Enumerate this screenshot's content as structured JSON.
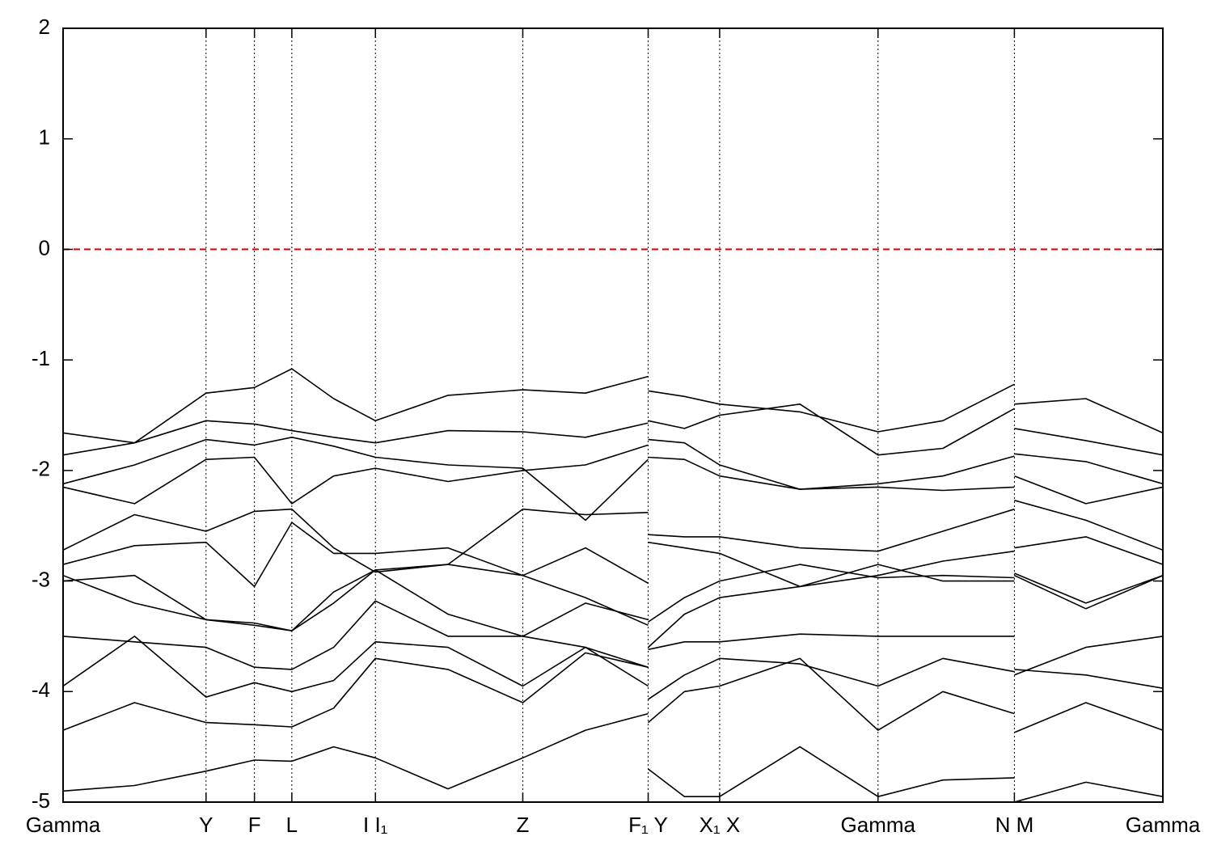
{
  "chart_data": {
    "type": "line",
    "x": [
      0,
      0.065,
      0.13,
      0.174,
      0.208,
      0.246,
      0.284,
      0.35,
      0.418,
      0.475,
      0.532,
      0.532,
      0.532,
      0.565,
      0.597,
      0.67,
      0.741,
      0.8,
      0.865,
      0.865,
      0.865,
      0.93,
      1.0
    ],
    "xlim": [
      0,
      1
    ],
    "xticks": [
      {
        "value": 0,
        "label": "Gamma"
      },
      {
        "value": 0.13,
        "label": "Y"
      },
      {
        "value": 0.174,
        "label": "F"
      },
      {
        "value": 0.208,
        "label": "L"
      },
      {
        "value": 0.284,
        "label": "I I₁"
      },
      {
        "value": 0.418,
        "label": "Z"
      },
      {
        "value": 0.532,
        "label": "F₁ Y"
      },
      {
        "value": 0.597,
        "label": "X₁ X"
      },
      {
        "value": 0.741,
        "label": "Gamma"
      },
      {
        "value": 0.865,
        "label": "N M"
      },
      {
        "value": 1.0,
        "label": "Gamma"
      }
    ],
    "ylim": [
      -5,
      2
    ],
    "yticks": [
      -5,
      -4,
      -3,
      -2,
      -1,
      0,
      1,
      2
    ],
    "xgrid": true,
    "hline": {
      "value": 0,
      "color": "#e00000"
    },
    "series": [
      {
        "color": "#000000",
        "values": [
          -1.66,
          -1.75,
          -1.3,
          -1.25,
          -1.08,
          -1.35,
          -1.55,
          -1.32,
          -1.27,
          -1.3,
          -1.15,
          null,
          -1.28,
          -1.33,
          -1.4,
          -1.47,
          -1.65,
          -1.55,
          -1.22,
          null,
          -1.4,
          -1.35,
          -1.66
        ]
      },
      {
        "color": "#000000",
        "values": [
          -1.86,
          -1.75,
          -1.55,
          -1.58,
          -1.64,
          -1.7,
          -1.75,
          -1.64,
          -1.65,
          -1.7,
          -1.57,
          null,
          -1.55,
          -1.62,
          -1.5,
          -1.4,
          -1.86,
          -1.8,
          -1.44,
          null,
          -1.62,
          -1.73,
          -1.86
        ]
      },
      {
        "color": "#000000",
        "values": [
          -2.12,
          -1.95,
          -1.72,
          -1.77,
          -1.7,
          -1.78,
          -1.88,
          -1.95,
          -1.98,
          -2.45,
          -1.9,
          null,
          -1.72,
          -1.75,
          -1.95,
          -2.17,
          -2.12,
          -2.05,
          -1.87,
          null,
          -1.85,
          -1.92,
          -2.12
        ]
      },
      {
        "color": "#000000",
        "values": [
          -2.15,
          -2.3,
          -1.9,
          -1.88,
          -2.3,
          -2.05,
          -1.98,
          -2.1,
          -2.0,
          -1.95,
          -1.77,
          null,
          -1.88,
          -1.9,
          -2.05,
          -2.17,
          -2.15,
          -2.18,
          -2.15,
          null,
          -2.05,
          -2.3,
          -2.15
        ]
      },
      {
        "color": "#000000",
        "values": [
          -2.72,
          -2.4,
          -2.55,
          -2.37,
          -2.35,
          -2.7,
          -2.92,
          -2.85,
          -2.35,
          -2.4,
          -2.38,
          null,
          -2.58,
          -2.6,
          -2.6,
          -2.7,
          -2.73,
          -2.55,
          -2.35,
          null,
          -2.27,
          -2.45,
          -2.72
        ]
      },
      {
        "color": "#000000",
        "values": [
          -2.85,
          -2.68,
          -2.65,
          -3.05,
          -2.47,
          -2.75,
          -2.75,
          -2.7,
          -2.95,
          -2.7,
          -3.02,
          null,
          -2.65,
          -2.7,
          -2.75,
          -3.05,
          -2.95,
          -2.82,
          -2.73,
          null,
          -2.7,
          -2.6,
          -2.85
        ]
      },
      {
        "color": "#000000",
        "values": [
          -2.95,
          -3.2,
          -3.35,
          -3.38,
          -3.45,
          -3.1,
          -2.9,
          -3.3,
          -3.5,
          -3.2,
          -3.35,
          null,
          -3.37,
          -3.15,
          -3.0,
          -2.85,
          -2.97,
          -2.95,
          -2.97,
          null,
          -2.93,
          -3.2,
          -2.95
        ]
      },
      {
        "color": "#000000",
        "values": [
          -3.0,
          -2.95,
          -3.35,
          -3.4,
          -3.45,
          -3.2,
          -2.9,
          -2.85,
          -2.95,
          -3.15,
          -3.4,
          null,
          -3.6,
          -3.3,
          -3.15,
          -3.05,
          -2.85,
          -3.0,
          -3.0,
          null,
          -2.95,
          -3.25,
          -2.95
        ]
      },
      {
        "color": "#000000",
        "values": [
          -3.5,
          -3.55,
          -3.6,
          -3.78,
          -3.8,
          -3.6,
          -3.18,
          -3.5,
          -3.5,
          -3.6,
          -3.78,
          null,
          -3.62,
          -3.55,
          -3.55,
          -3.48,
          -3.5,
          -3.5,
          -3.5,
          null,
          -3.85,
          -3.6,
          -3.5
        ]
      },
      {
        "color": "#000000",
        "values": [
          -3.95,
          -3.5,
          -4.05,
          -3.92,
          -4.0,
          -3.9,
          -3.55,
          -3.6,
          -3.95,
          -3.6,
          -3.95,
          null,
          -4.07,
          -3.85,
          -3.7,
          -3.75,
          -3.95,
          -3.7,
          -3.82,
          null,
          -3.8,
          -3.85,
          -3.97
        ]
      },
      {
        "color": "#000000",
        "values": [
          -4.35,
          -4.1,
          -4.28,
          -4.3,
          -4.32,
          -4.15,
          -3.7,
          -3.8,
          -4.1,
          -3.65,
          -3.78,
          null,
          -4.28,
          -4.0,
          -3.95,
          -3.7,
          -4.35,
          -4.0,
          -4.2,
          null,
          -4.37,
          -4.1,
          -4.35
        ]
      },
      {
        "color": "#000000",
        "values": [
          -4.9,
          -4.85,
          -4.72,
          -4.62,
          -4.63,
          -4.5,
          -4.6,
          -4.88,
          -4.6,
          -4.35,
          -4.2,
          null,
          -4.7,
          -4.95,
          -4.95,
          -4.5,
          -4.95,
          -4.8,
          -4.78,
          null,
          -5.0,
          -4.82,
          -4.95
        ]
      }
    ]
  }
}
